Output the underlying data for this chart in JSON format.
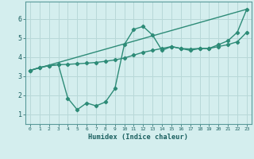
{
  "line1_x": [
    0,
    1,
    2,
    3,
    4,
    5,
    6,
    7,
    8,
    9,
    10,
    11,
    12,
    13,
    14,
    15,
    16,
    17,
    18,
    19,
    20,
    21,
    22,
    23
  ],
  "line1_y": [
    3.3,
    3.45,
    3.55,
    3.6,
    3.62,
    3.65,
    3.68,
    3.72,
    3.78,
    3.85,
    3.95,
    4.1,
    4.25,
    4.35,
    4.45,
    4.55,
    4.45,
    4.42,
    4.45,
    4.45,
    4.55,
    4.65,
    4.8,
    5.3
  ],
  "line2_x": [
    0,
    1,
    2,
    3,
    4,
    5,
    6,
    7,
    8,
    9,
    10,
    11,
    12,
    13,
    14,
    15,
    16,
    17,
    18,
    19,
    20,
    21,
    22,
    23
  ],
  "line2_y": [
    3.3,
    3.45,
    3.55,
    3.6,
    1.85,
    1.25,
    1.6,
    1.45,
    1.65,
    2.35,
    4.65,
    5.45,
    5.6,
    5.15,
    4.35,
    4.55,
    4.45,
    4.35,
    4.45,
    4.45,
    4.65,
    4.85,
    5.3,
    6.5
  ],
  "line3_x": [
    0,
    23
  ],
  "line3_y": [
    3.3,
    6.5
  ],
  "color": "#2d8b77",
  "bg_color": "#d4eeee",
  "grid_color": "#b8d8d8",
  "xlabel": "Humidex (Indice chaleur)",
  "xlim": [
    -0.5,
    23.5
  ],
  "ylim": [
    0.5,
    6.9
  ],
  "yticks": [
    1,
    2,
    3,
    4,
    5,
    6
  ],
  "xticks": [
    0,
    1,
    2,
    3,
    4,
    5,
    6,
    7,
    8,
    9,
    10,
    11,
    12,
    13,
    14,
    15,
    16,
    17,
    18,
    19,
    20,
    21,
    22,
    23
  ],
  "marker": "D",
  "markersize": 2.2,
  "linewidth": 1.0
}
